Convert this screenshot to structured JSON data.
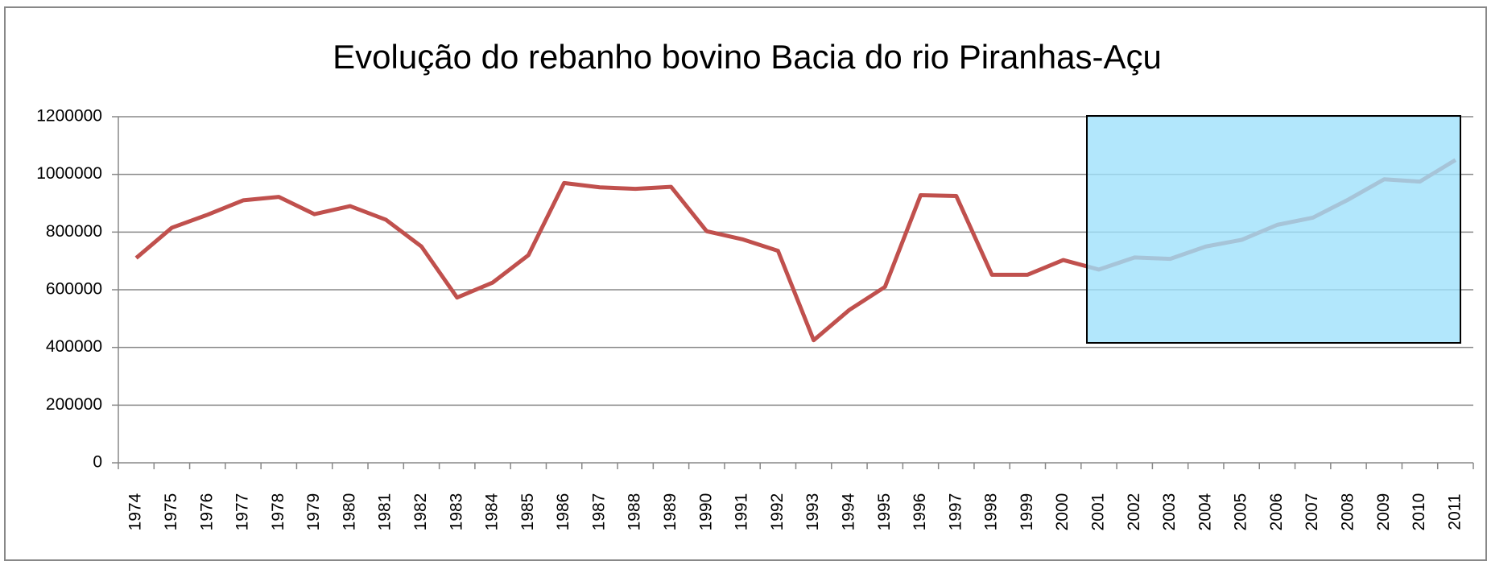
{
  "chart_data": {
    "type": "line",
    "title": "Evolução do rebanho bovino Bacia do rio Piranhas-Açu",
    "categories": [
      "1974",
      "1975",
      "1976",
      "1977",
      "1978",
      "1979",
      "1980",
      "1981",
      "1982",
      "1983",
      "1984",
      "1985",
      "1986",
      "1987",
      "1988",
      "1989",
      "1990",
      "1991",
      "1992",
      "1993",
      "1994",
      "1995",
      "1996",
      "1997",
      "1998",
      "1999",
      "2000",
      "2001",
      "2002",
      "2003",
      "2004",
      "2005",
      "2006",
      "2007",
      "2008",
      "2009",
      "2010",
      "2011"
    ],
    "series": [
      {
        "color": "#c0504d",
        "values": [
          710000,
          815000,
          860000,
          910000,
          922000,
          862000,
          890000,
          843000,
          750000,
          573000,
          625000,
          720000,
          970000,
          955000,
          950000,
          957000,
          803000,
          775000,
          735000,
          425000,
          530000,
          610000,
          928000,
          925000,
          652000,
          652000,
          703000,
          670000,
          712000,
          707000,
          750000,
          773000,
          825000,
          850000,
          913000,
          983000,
          975000,
          1050000
        ]
      }
    ],
    "ylim": [
      0,
      1200000
    ],
    "yticks": [
      0,
      200000,
      400000,
      600000,
      800000,
      1000000,
      1200000
    ],
    "grid": true
  }
}
